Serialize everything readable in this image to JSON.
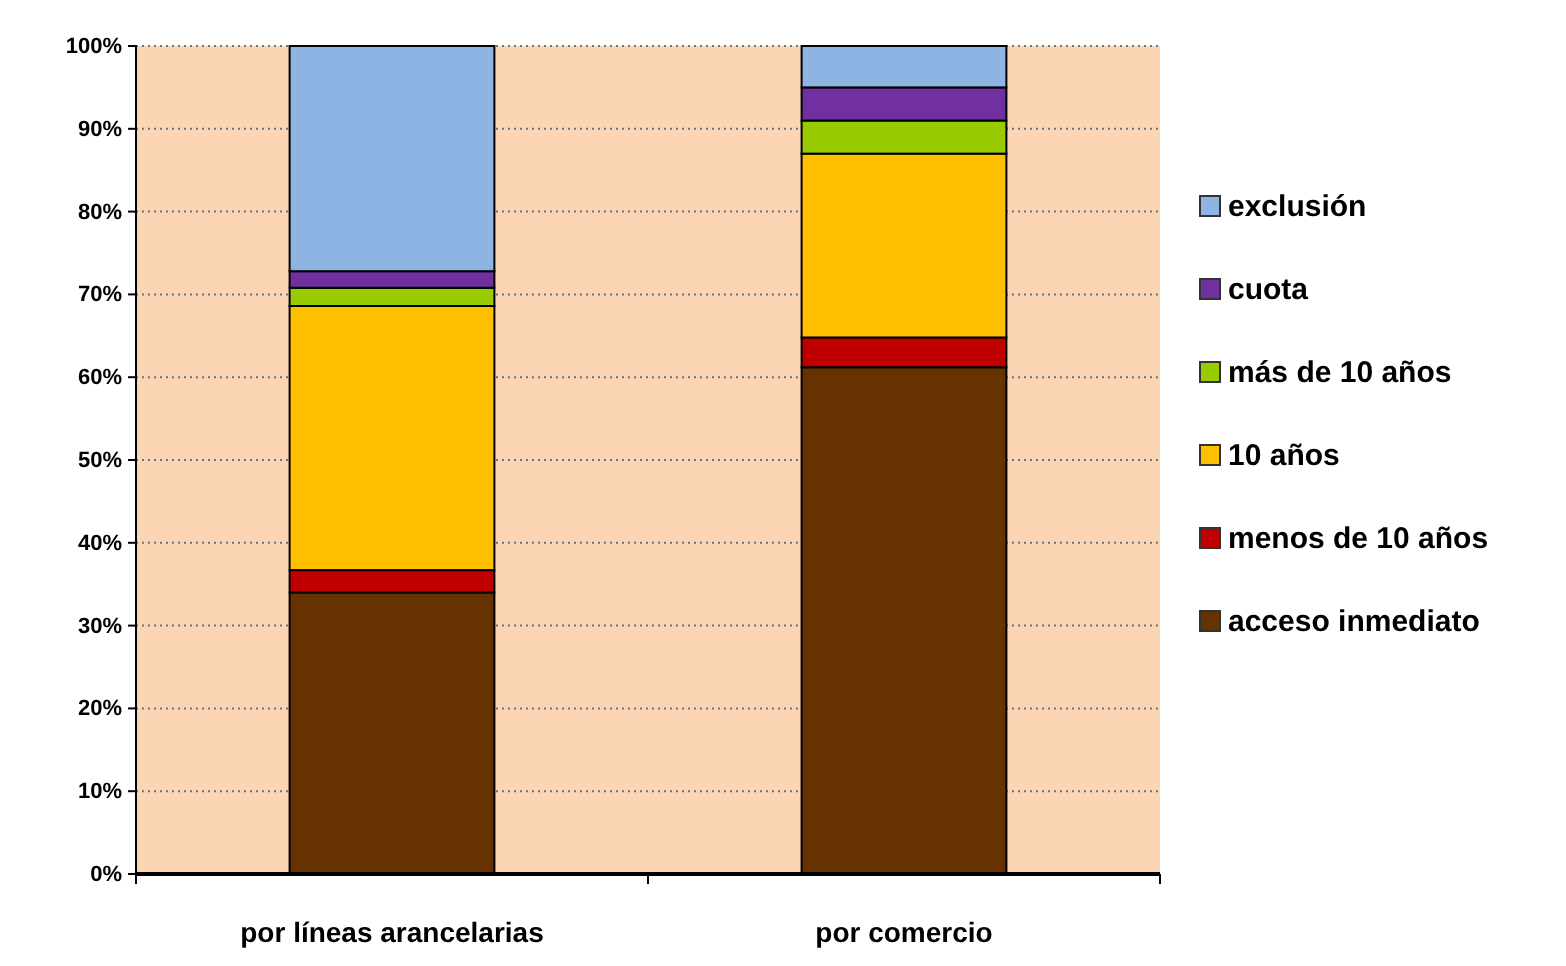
{
  "chart_data": {
    "type": "bar",
    "stacked": true,
    "categories": [
      "por líneas arancelarias",
      "por comercio"
    ],
    "series": [
      {
        "name": "acceso inmediato",
        "color": "#663300",
        "values": [
          34.0,
          61.2
        ]
      },
      {
        "name": "menos de 10 años",
        "color": "#c00000",
        "values": [
          2.7,
          3.6
        ]
      },
      {
        "name": "10 años",
        "color": "#ffc000",
        "values": [
          31.9,
          22.2
        ]
      },
      {
        "name": "más de 10 años",
        "color": "#99cc00",
        "values": [
          2.2,
          4.0
        ]
      },
      {
        "name": "cuota",
        "color": "#7030a0",
        "values": [
          2.0,
          4.0
        ]
      },
      {
        "name": "exclusión",
        "color": "#8db4e2",
        "values": [
          27.2,
          5.0
        ]
      }
    ],
    "ylim": [
      0,
      100
    ],
    "yticks": [
      {
        "value": 0,
        "label": "0%"
      },
      {
        "value": 10,
        "label": "10%"
      },
      {
        "value": 20,
        "label": "20%"
      },
      {
        "value": 30,
        "label": "30%"
      },
      {
        "value": 40,
        "label": "40%"
      },
      {
        "value": 50,
        "label": "50%"
      },
      {
        "value": 60,
        "label": "60%"
      },
      {
        "value": 70,
        "label": "70%"
      },
      {
        "value": 80,
        "label": "80%"
      },
      {
        "value": 90,
        "label": "90%"
      },
      {
        "value": 100,
        "label": "100%"
      }
    ],
    "grid": "y",
    "legend": "right"
  }
}
